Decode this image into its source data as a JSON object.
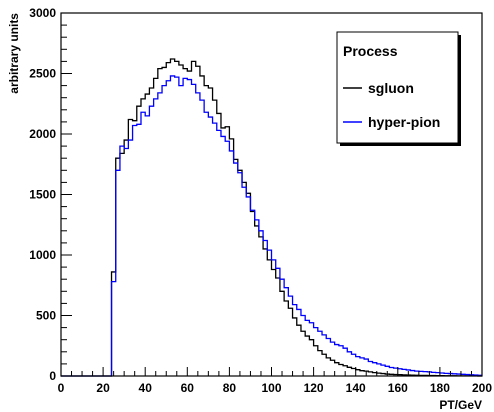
{
  "chart_data": {
    "type": "line",
    "style": "step-histogram",
    "title": "",
    "xlabel": "PT/GeV",
    "ylabel": "arbitrary units",
    "xlim": [
      0,
      200
    ],
    "ylim": [
      0,
      3000
    ],
    "bin_width": 2,
    "x_ticks": [
      0,
      20,
      40,
      60,
      80,
      100,
      120,
      140,
      160,
      180,
      200
    ],
    "y_ticks": [
      0,
      500,
      1000,
      1500,
      2000,
      2500,
      3000
    ],
    "grid": false,
    "legend": {
      "title": "Process",
      "position": "top-right",
      "entries": [
        "sgluon",
        "hyper-pion"
      ]
    },
    "series": [
      {
        "name": "sgluon",
        "color": "#000000",
        "x": [
          0,
          2,
          4,
          6,
          8,
          10,
          12,
          14,
          16,
          18,
          20,
          22,
          24,
          26,
          28,
          30,
          32,
          34,
          36,
          38,
          40,
          42,
          44,
          46,
          48,
          50,
          52,
          54,
          56,
          58,
          60,
          62,
          64,
          66,
          68,
          70,
          72,
          74,
          76,
          78,
          80,
          82,
          84,
          86,
          88,
          90,
          92,
          94,
          96,
          98,
          100,
          102,
          104,
          106,
          108,
          110,
          112,
          114,
          116,
          118,
          120,
          122,
          124,
          126,
          128,
          130,
          132,
          134,
          136,
          138,
          140,
          142,
          144,
          146,
          148,
          150,
          152,
          154,
          156,
          158,
          160,
          162,
          164,
          166,
          168,
          170,
          172,
          174,
          176,
          178,
          180,
          182,
          184,
          186,
          188,
          190,
          192,
          194,
          196,
          198
        ],
        "values": [
          0,
          0,
          0,
          0,
          0,
          0,
          0,
          0,
          0,
          0,
          0,
          0,
          860,
          1800,
          1840,
          1950,
          2120,
          2110,
          2230,
          2290,
          2330,
          2380,
          2460,
          2540,
          2550,
          2590,
          2620,
          2600,
          2570,
          2540,
          2520,
          2600,
          2560,
          2480,
          2400,
          2380,
          2280,
          2170,
          2050,
          2060,
          1960,
          1790,
          1700,
          1600,
          1510,
          1360,
          1240,
          1150,
          1050,
          960,
          880,
          810,
          700,
          620,
          560,
          480,
          420,
          370,
          330,
          300,
          250,
          210,
          180,
          150,
          130,
          110,
          95,
          85,
          72,
          62,
          52,
          44,
          40,
          34,
          28,
          24,
          20,
          16,
          14,
          12,
          11,
          9,
          8,
          7,
          6,
          5,
          5,
          4,
          4,
          3,
          3,
          2,
          2,
          2,
          1,
          1,
          1,
          1,
          1,
          0
        ]
      },
      {
        "name": "hyper-pion",
        "color": "#0000ff",
        "x": [
          0,
          2,
          4,
          6,
          8,
          10,
          12,
          14,
          16,
          18,
          20,
          22,
          24,
          26,
          28,
          30,
          32,
          34,
          36,
          38,
          40,
          42,
          44,
          46,
          48,
          50,
          52,
          54,
          56,
          58,
          60,
          62,
          64,
          66,
          68,
          70,
          72,
          74,
          76,
          78,
          80,
          82,
          84,
          86,
          88,
          90,
          92,
          94,
          96,
          98,
          100,
          102,
          104,
          106,
          108,
          110,
          112,
          114,
          116,
          118,
          120,
          122,
          124,
          126,
          128,
          130,
          132,
          134,
          136,
          138,
          140,
          142,
          144,
          146,
          148,
          150,
          152,
          154,
          156,
          158,
          160,
          162,
          164,
          166,
          168,
          170,
          172,
          174,
          176,
          178,
          180,
          182,
          184,
          186,
          188,
          190,
          192,
          194,
          196,
          198
        ],
        "values": [
          0,
          0,
          0,
          0,
          0,
          0,
          0,
          0,
          0,
          0,
          0,
          0,
          780,
          1700,
          1900,
          1880,
          1950,
          2070,
          2080,
          2180,
          2150,
          2230,
          2290,
          2340,
          2400,
          2440,
          2480,
          2470,
          2400,
          2460,
          2450,
          2410,
          2340,
          2280,
          2180,
          2140,
          2090,
          2030,
          1980,
          1940,
          1860,
          1760,
          1680,
          1560,
          1480,
          1370,
          1290,
          1200,
          1120,
          1040,
          960,
          890,
          800,
          730,
          660,
          590,
          550,
          500,
          460,
          440,
          400,
          370,
          340,
          310,
          280,
          260,
          250,
          230,
          200,
          180,
          160,
          150,
          140,
          120,
          110,
          100,
          90,
          80,
          70,
          65,
          60,
          55,
          50,
          45,
          40,
          38,
          36,
          34,
          30,
          28,
          25,
          22,
          20,
          18,
          16,
          14,
          12,
          10,
          8,
          6
        ]
      }
    ]
  }
}
